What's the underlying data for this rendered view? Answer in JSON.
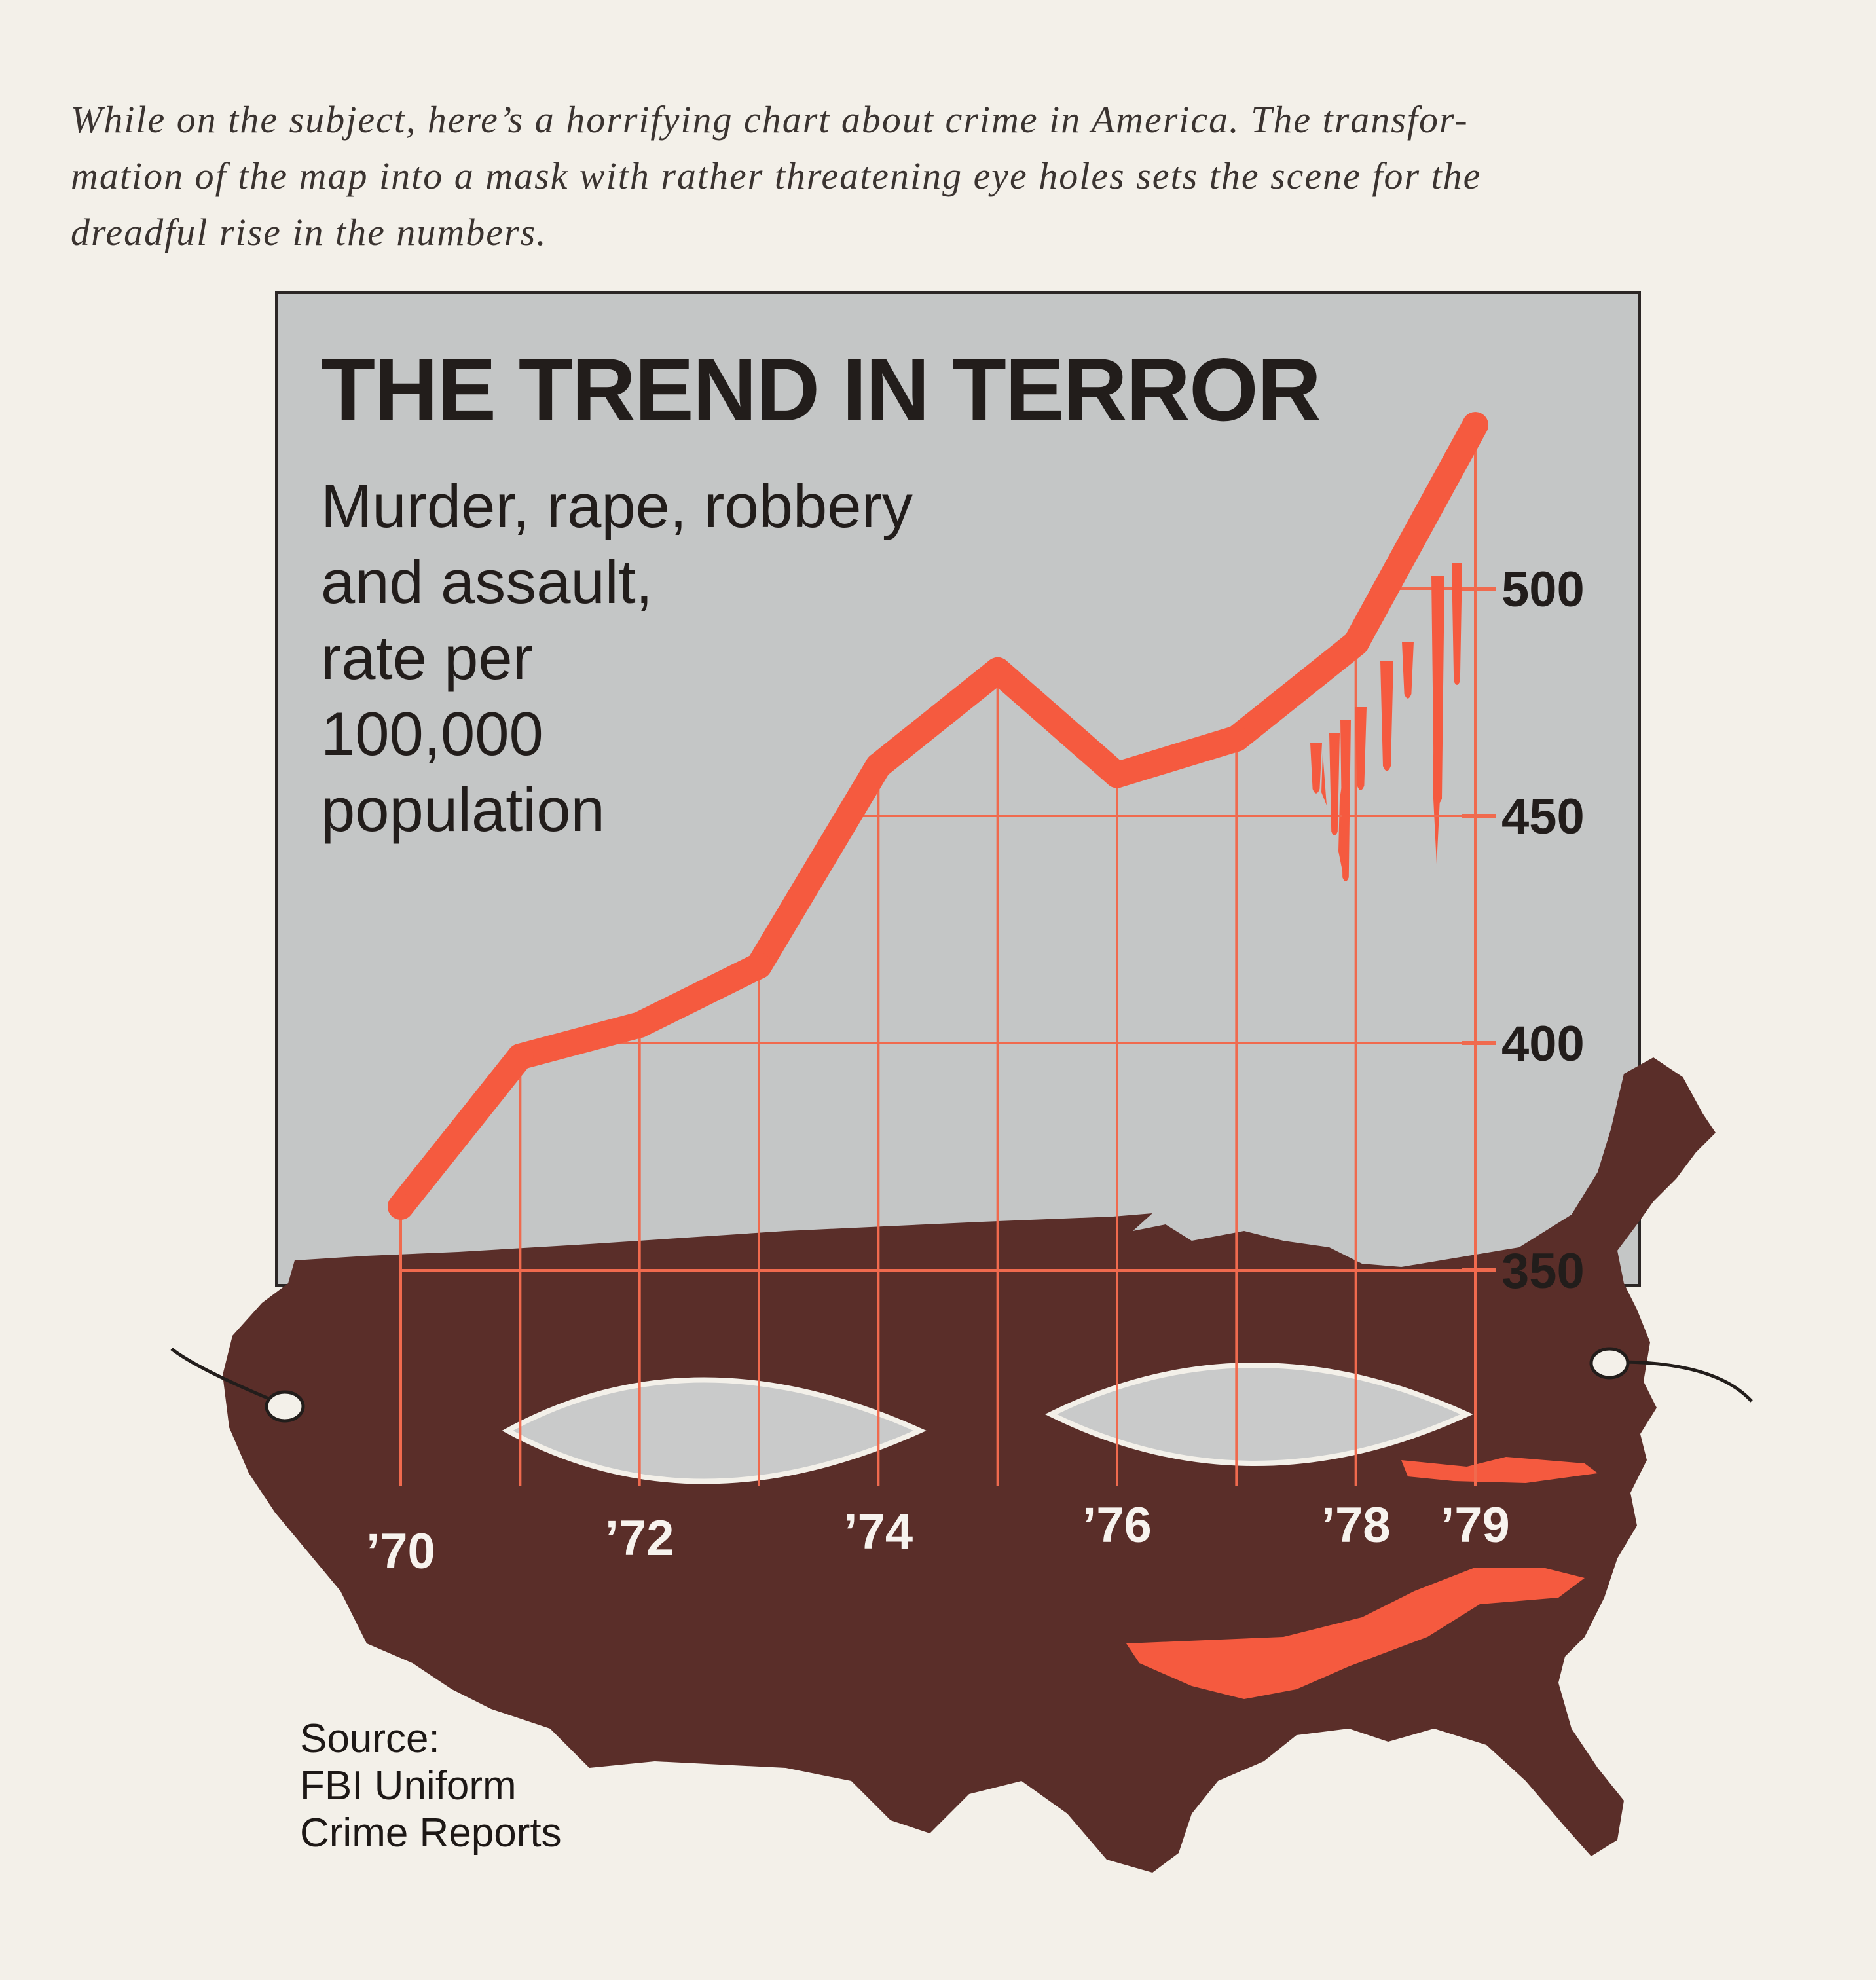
{
  "caption": {
    "lines": [
      "While on the subject, here’s a horrifying chart about crime in America. The transfor-",
      "mation of the map into a mask with rather threatening eye holes sets the scene for the",
      "dreadful rise in the numbers."
    ]
  },
  "colors": {
    "page": "#f3f0e9",
    "panel": "#c4c6c6",
    "map": "#5a2e29",
    "line": "#f55a3f",
    "grid": "#f06a4e",
    "text": "#221d1b"
  },
  "chart_data": {
    "type": "line",
    "title": "THE TREND IN TERROR",
    "subtitle_lines": [
      "Murder, rape, robbery",
      "and assault,",
      "rate per",
      "100,000",
      "population"
    ],
    "x": [
      1970,
      1971,
      1972,
      1973,
      1974,
      1975,
      1976,
      1977,
      1978,
      1979
    ],
    "x_tick_labels": [
      "’70",
      "’72",
      "’74",
      "’76",
      "’78",
      "’79"
    ],
    "x_tick_years": [
      1970,
      1972,
      1974,
      1976,
      1978,
      1979
    ],
    "series": [
      {
        "values": [
          364,
          397,
          404,
          417,
          461,
          482,
          459,
          467,
          488,
          536
        ]
      }
    ],
    "y_ticks": [
      350,
      400,
      450,
      500
    ],
    "ylim": [
      345,
      540
    ],
    "grid": true,
    "source_lines": [
      "Source:",
      "FBI Uniform",
      "Crime Reports"
    ]
  }
}
